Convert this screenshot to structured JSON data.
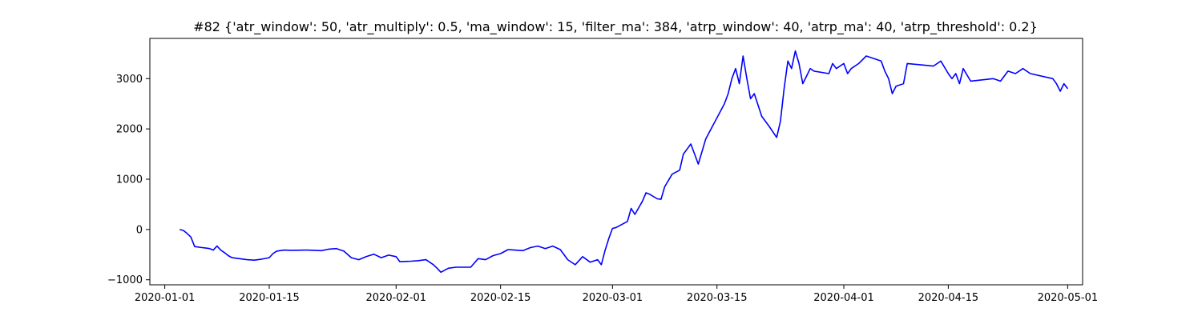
{
  "chart_data": {
    "type": "line",
    "title": "#82 {'atr_window': 50, 'atr_multiply': 0.5, 'ma_window': 15, 'filter_ma': 384, 'atrp_window': 40, 'atrp_ma': 40, 'atrp_threshold': 0.2}",
    "xlabel": "",
    "ylabel": "",
    "x_type": "date",
    "xlim": [
      "2019-12-30",
      "2020-05-03"
    ],
    "ylim": [
      -1100,
      3800
    ],
    "x_ticks": [
      "2020-01-01",
      "2020-01-15",
      "2020-02-01",
      "2020-02-15",
      "2020-03-01",
      "2020-03-15",
      "2020-04-01",
      "2020-04-15",
      "2020-05-01"
    ],
    "x_tick_labels": [
      "2020-01-01",
      "2020-01-15",
      "2020-02-01",
      "2020-02-15",
      "2020-03-01",
      "2020-03-15",
      "2020-04-01",
      "2020-04-15",
      "2020-05-01"
    ],
    "y_ticks": [
      -1000,
      0,
      1000,
      2000,
      3000
    ],
    "y_tick_labels": [
      "−1000",
      "0",
      "1000",
      "2000",
      "3000"
    ],
    "grid": false,
    "series": [
      {
        "color": "#0000ff",
        "points": [
          [
            "2020-01-03T00:00",
            0
          ],
          [
            "2020-01-03T12:00",
            -20
          ],
          [
            "2020-01-04T00:00",
            -80
          ],
          [
            "2020-01-04T12:00",
            -150
          ],
          [
            "2020-01-05T00:00",
            -340
          ],
          [
            "2020-01-06T00:00",
            -360
          ],
          [
            "2020-01-07T00:00",
            -380
          ],
          [
            "2020-01-07T12:00",
            -410
          ],
          [
            "2020-01-08T00:00",
            -330
          ],
          [
            "2020-01-08T12:00",
            -410
          ],
          [
            "2020-01-09T00:00",
            -460
          ],
          [
            "2020-01-09T12:00",
            -520
          ],
          [
            "2020-01-10T00:00",
            -560
          ],
          [
            "2020-01-11T00:00",
            -580
          ],
          [
            "2020-01-12T00:00",
            -600
          ],
          [
            "2020-01-13T00:00",
            -610
          ],
          [
            "2020-01-14T00:00",
            -590
          ],
          [
            "2020-01-15T00:00",
            -560
          ],
          [
            "2020-01-15T12:00",
            -480
          ],
          [
            "2020-01-16T00:00",
            -430
          ],
          [
            "2020-01-17T00:00",
            -410
          ],
          [
            "2020-01-18T00:00",
            -415
          ],
          [
            "2020-01-20T00:00",
            -410
          ],
          [
            "2020-01-22T00:00",
            -420
          ],
          [
            "2020-01-23T00:00",
            -390
          ],
          [
            "2020-01-24T00:00",
            -380
          ],
          [
            "2020-01-25T00:00",
            -430
          ],
          [
            "2020-01-26T00:00",
            -560
          ],
          [
            "2020-01-27T00:00",
            -600
          ],
          [
            "2020-01-28T00:00",
            -540
          ],
          [
            "2020-01-29T00:00",
            -490
          ],
          [
            "2020-01-30T00:00",
            -560
          ],
          [
            "2020-01-31T00:00",
            -510
          ],
          [
            "2020-02-01T00:00",
            -540
          ],
          [
            "2020-02-01T12:00",
            -640
          ],
          [
            "2020-02-03T00:00",
            -630
          ],
          [
            "2020-02-04T00:00",
            -620
          ],
          [
            "2020-02-05T00:00",
            -600
          ],
          [
            "2020-02-06T00:00",
            -700
          ],
          [
            "2020-02-06T12:00",
            -770
          ],
          [
            "2020-02-07T00:00",
            -850
          ],
          [
            "2020-02-08T00:00",
            -770
          ],
          [
            "2020-02-09T00:00",
            -750
          ],
          [
            "2020-02-11T00:00",
            -750
          ],
          [
            "2020-02-12T00:00",
            -580
          ],
          [
            "2020-02-13T00:00",
            -600
          ],
          [
            "2020-02-14T00:00",
            -520
          ],
          [
            "2020-02-15T00:00",
            -480
          ],
          [
            "2020-02-16T00:00",
            -400
          ],
          [
            "2020-02-18T00:00",
            -420
          ],
          [
            "2020-02-19T00:00",
            -360
          ],
          [
            "2020-02-20T00:00",
            -330
          ],
          [
            "2020-02-21T00:00",
            -380
          ],
          [
            "2020-02-22T00:00",
            -330
          ],
          [
            "2020-02-23T00:00",
            -400
          ],
          [
            "2020-02-24T00:00",
            -600
          ],
          [
            "2020-02-25T00:00",
            -700
          ],
          [
            "2020-02-26T00:00",
            -540
          ],
          [
            "2020-02-27T00:00",
            -650
          ],
          [
            "2020-02-28T00:00",
            -600
          ],
          [
            "2020-02-28T12:00",
            -700
          ],
          [
            "2020-02-29T00:00",
            -420
          ],
          [
            "2020-02-29T12:00",
            -180
          ],
          [
            "2020-03-01T00:00",
            20
          ],
          [
            "2020-03-01T12:00",
            40
          ],
          [
            "2020-03-02T00:00",
            80
          ],
          [
            "2020-03-03T00:00",
            160
          ],
          [
            "2020-03-03T12:00",
            420
          ],
          [
            "2020-03-04T00:00",
            300
          ],
          [
            "2020-03-05T00:00",
            560
          ],
          [
            "2020-03-05T12:00",
            730
          ],
          [
            "2020-03-06T00:00",
            700
          ],
          [
            "2020-03-07T00:00",
            610
          ],
          [
            "2020-03-07T12:00",
            600
          ],
          [
            "2020-03-08T00:00",
            850
          ],
          [
            "2020-03-09T00:00",
            1100
          ],
          [
            "2020-03-10T00:00",
            1180
          ],
          [
            "2020-03-10T12:00",
            1500
          ],
          [
            "2020-03-11T00:00",
            1600
          ],
          [
            "2020-03-11T12:00",
            1700
          ],
          [
            "2020-03-12T00:00",
            1500
          ],
          [
            "2020-03-12T12:00",
            1300
          ],
          [
            "2020-03-13T00:00",
            1550
          ],
          [
            "2020-03-13T12:00",
            1800
          ],
          [
            "2020-03-16T00:00",
            2500
          ],
          [
            "2020-03-16T12:00",
            2700
          ],
          [
            "2020-03-17T00:00",
            3000
          ],
          [
            "2020-03-17T12:00",
            3200
          ],
          [
            "2020-03-18T00:00",
            2900
          ],
          [
            "2020-03-18T12:00",
            3450
          ],
          [
            "2020-03-19T00:00",
            3000
          ],
          [
            "2020-03-19T12:00",
            2600
          ],
          [
            "2020-03-20T00:00",
            2700
          ],
          [
            "2020-03-21T00:00",
            2250
          ],
          [
            "2020-03-22T00:00",
            2050
          ],
          [
            "2020-03-23T00:00",
            1830
          ],
          [
            "2020-03-23T12:00",
            2150
          ],
          [
            "2020-03-24T00:00",
            2800
          ],
          [
            "2020-03-24T12:00",
            3350
          ],
          [
            "2020-03-25T00:00",
            3200
          ],
          [
            "2020-03-25T12:00",
            3550
          ],
          [
            "2020-03-26T00:00",
            3300
          ],
          [
            "2020-03-26T12:00",
            2900
          ],
          [
            "2020-03-27T00:00",
            3050
          ],
          [
            "2020-03-27T12:00",
            3200
          ],
          [
            "2020-03-28T00:00",
            3150
          ],
          [
            "2020-03-30T00:00",
            3100
          ],
          [
            "2020-03-30T12:00",
            3300
          ],
          [
            "2020-03-31T00:00",
            3200
          ],
          [
            "2020-04-01T00:00",
            3300
          ],
          [
            "2020-04-01T12:00",
            3100
          ],
          [
            "2020-04-02T00:00",
            3200
          ],
          [
            "2020-04-03T00:00",
            3300
          ],
          [
            "2020-04-04T00:00",
            3450
          ],
          [
            "2020-04-06T00:00",
            3350
          ],
          [
            "2020-04-06T12:00",
            3150
          ],
          [
            "2020-04-07T00:00",
            3000
          ],
          [
            "2020-04-07T12:00",
            2700
          ],
          [
            "2020-04-08T00:00",
            2850
          ],
          [
            "2020-04-09T00:00",
            2900
          ],
          [
            "2020-04-09T12:00",
            3300
          ],
          [
            "2020-04-13T00:00",
            3250
          ],
          [
            "2020-04-14T00:00",
            3350
          ],
          [
            "2020-04-15T00:00",
            3100
          ],
          [
            "2020-04-15T12:00",
            3000
          ],
          [
            "2020-04-16T00:00",
            3100
          ],
          [
            "2020-04-16T12:00",
            2900
          ],
          [
            "2020-04-17T00:00",
            3200
          ],
          [
            "2020-04-18T00:00",
            2950
          ],
          [
            "2020-04-21T00:00",
            3000
          ],
          [
            "2020-04-22T00:00",
            2950
          ],
          [
            "2020-04-23T00:00",
            3150
          ],
          [
            "2020-04-24T00:00",
            3100
          ],
          [
            "2020-04-25T00:00",
            3200
          ],
          [
            "2020-04-26T00:00",
            3100
          ],
          [
            "2020-04-29T00:00",
            3000
          ],
          [
            "2020-04-29T12:00",
            2900
          ],
          [
            "2020-04-30T00:00",
            2750
          ],
          [
            "2020-04-30T12:00",
            2900
          ],
          [
            "2020-05-01T00:00",
            2800
          ]
        ]
      }
    ]
  }
}
